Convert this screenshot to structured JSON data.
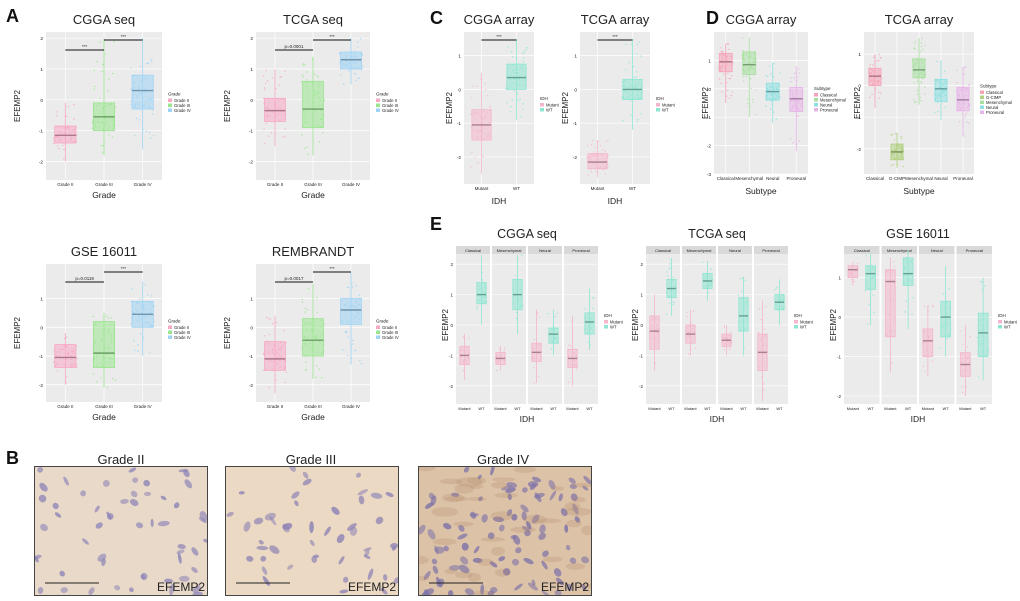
{
  "panels": {
    "A": "A",
    "B": "B",
    "C": "C",
    "D": "D",
    "E": "E"
  },
  "colors": {
    "grade2": "#f7a8c4",
    "grade3": "#9be58f",
    "grade4": "#9fd4f5",
    "mutant": "#f4b6cc",
    "wt": "#8ee6d2",
    "classical": "#f5a4b8",
    "gcimp": "#b0d080",
    "mesenchymal": "#a8e0a0",
    "neural": "#8ee0e0",
    "proneural": "#e7b4e8",
    "bg": "#ebebeb"
  },
  "chart_data": [
    {
      "id": "A1",
      "type": "box",
      "title": "CGGA seq",
      "xlabel": "Grade",
      "ylabel": "EFEMP2",
      "categories": [
        "Grade II",
        "Grade III",
        "Grade IV"
      ],
      "ylim": [
        -2.6,
        2.2
      ],
      "yticks": [
        "2",
        "1",
        "0",
        "-1",
        "-2"
      ],
      "yticks_v": [
        2,
        1,
        0,
        -1,
        -2
      ],
      "series": [
        {
          "q1": -1.4,
          "med": -1.15,
          "q3": -0.85,
          "lo": -2.0,
          "hi": -0.1
        },
        {
          "q1": -1.0,
          "med": -0.55,
          "q3": -0.1,
          "lo": -1.8,
          "hi": 2.0
        },
        {
          "q1": -0.3,
          "med": 0.3,
          "q3": 0.8,
          "lo": -1.6,
          "hi": 2.0
        }
      ],
      "sig": [
        {
          "from": 0,
          "to": 1,
          "label": "***"
        },
        {
          "from": 1,
          "to": 2,
          "label": "***"
        }
      ],
      "legend_title": "Grade",
      "legend": [
        "Grade II",
        "Grade III",
        "Grade IV"
      ]
    },
    {
      "id": "A2",
      "type": "box",
      "title": "TCGA seq",
      "xlabel": "Grade",
      "ylabel": "EFEMP2",
      "categories": [
        "Grade II",
        "Grade III",
        "Grade IV"
      ],
      "ylim": [
        -2.6,
        2.2
      ],
      "yticks": [
        "2",
        "1",
        "0",
        "-1",
        "-2"
      ],
      "yticks_v": [
        2,
        1,
        0,
        -1,
        -2
      ],
      "series": [
        {
          "q1": -0.7,
          "med": -0.35,
          "q3": 0.05,
          "lo": -1.5,
          "hi": 1.0
        },
        {
          "q1": -0.9,
          "med": -0.3,
          "q3": 0.6,
          "lo": -1.8,
          "hi": 1.4
        },
        {
          "q1": 1.0,
          "med": 1.3,
          "q3": 1.55,
          "lo": 0.5,
          "hi": 2.0
        }
      ],
      "sig": [
        {
          "from": 0,
          "to": 1,
          "label": "p=0.0001"
        },
        {
          "from": 1,
          "to": 2,
          "label": "***"
        }
      ],
      "legend_title": "Grade",
      "legend": [
        "Grade II",
        "Grade III",
        "Grade IV"
      ]
    },
    {
      "id": "A3",
      "type": "box",
      "title": "GSE 16011",
      "xlabel": "Grade",
      "ylabel": "EFEMP2",
      "categories": [
        "Grade II",
        "Grade III",
        "Grade IV"
      ],
      "ylim": [
        -2.6,
        2.2
      ],
      "yticks": [
        "1",
        "0",
        "-1",
        "-2"
      ],
      "yticks_v": [
        1,
        0,
        -1,
        -2
      ],
      "series": [
        {
          "q1": -1.4,
          "med": -1.05,
          "q3": -0.6,
          "lo": -2.0,
          "hi": -0.2
        },
        {
          "q1": -1.4,
          "med": -0.9,
          "q3": 0.2,
          "lo": -2.1,
          "hi": 0.5
        },
        {
          "q1": 0.0,
          "med": 0.45,
          "q3": 0.9,
          "lo": -1.0,
          "hi": 1.6
        }
      ],
      "sig": [
        {
          "from": 0,
          "to": 1,
          "label": "p=0.0119"
        },
        {
          "from": 1,
          "to": 2,
          "label": "***"
        }
      ],
      "legend_title": "Grade",
      "legend": [
        "Grade II",
        "Grade III",
        "Grade IV"
      ]
    },
    {
      "id": "A4",
      "type": "box",
      "title": "REMBRANDT",
      "xlabel": "Grade",
      "ylabel": "EFEMP2",
      "categories": [
        "Grade II",
        "Grade III",
        "Grade IV"
      ],
      "ylim": [
        -2.6,
        2.2
      ],
      "yticks": [
        "1",
        "0",
        "-1",
        "-2"
      ],
      "yticks_v": [
        1,
        0,
        -1,
        -2
      ],
      "series": [
        {
          "q1": -1.5,
          "med": -1.1,
          "q3": -0.5,
          "lo": -2.3,
          "hi": 0.4
        },
        {
          "q1": -1.0,
          "med": -0.45,
          "q3": 0.3,
          "lo": -1.8,
          "hi": 1.5
        },
        {
          "q1": 0.1,
          "med": 0.6,
          "q3": 1.0,
          "lo": -1.3,
          "hi": 1.9
        }
      ],
      "sig": [
        {
          "from": 0,
          "to": 1,
          "label": "p=0.0017"
        },
        {
          "from": 1,
          "to": 2,
          "label": "***"
        }
      ],
      "legend_title": "Grade",
      "legend": [
        "Grade II",
        "Grade III",
        "Grade IV"
      ]
    },
    {
      "id": "C1",
      "type": "box",
      "title": "CGGA array",
      "xlabel": "IDH",
      "ylabel": "EFEMP2",
      "categories": [
        "Mutant",
        "WT"
      ],
      "ylim": [
        -2.8,
        1.7
      ],
      "yticks": [
        "1",
        "0",
        "-1",
        "-2"
      ],
      "yticks_v": [
        1,
        0,
        -1,
        -2
      ],
      "series": [
        {
          "q1": -1.5,
          "med": -1.05,
          "q3": -0.6,
          "lo": -2.5,
          "hi": 0.5
        },
        {
          "q1": 0.0,
          "med": 0.35,
          "q3": 0.75,
          "lo": -0.9,
          "hi": 1.5
        }
      ],
      "sig": [
        {
          "from": 0,
          "to": 1,
          "label": "***"
        }
      ],
      "legend_title": "IDH",
      "legend": [
        "Mutant",
        "WT"
      ]
    },
    {
      "id": "C2",
      "type": "box",
      "title": "TCGA array",
      "xlabel": "IDH",
      "ylabel": "EFEMP2",
      "categories": [
        "Mutant",
        "WT"
      ],
      "ylim": [
        -2.8,
        1.7
      ],
      "yticks": [
        "1",
        "0",
        "-1",
        "-2"
      ],
      "yticks_v": [
        1,
        0,
        -1,
        -2
      ],
      "series": [
        {
          "q1": -2.35,
          "med": -2.15,
          "q3": -1.9,
          "lo": -2.6,
          "hi": -1.5
        },
        {
          "q1": -0.3,
          "med": 0.0,
          "q3": 0.3,
          "lo": -1.2,
          "hi": 1.5
        }
      ],
      "sig": [
        {
          "from": 0,
          "to": 1,
          "label": "***"
        }
      ],
      "legend_title": "IDH",
      "legend": [
        "Mutant",
        "WT"
      ]
    },
    {
      "id": "D1",
      "type": "box",
      "title": "CGGA array",
      "xlabel": "Subtype",
      "ylabel": "EFEMP2",
      "categories": [
        "Classical",
        "Mesenchymal",
        "Neural",
        "Proneural"
      ],
      "ylim": [
        -3.0,
        2.0
      ],
      "yticks": [
        "1",
        "0",
        "-1",
        "-2",
        "-3"
      ],
      "yticks_v": [
        1,
        0,
        -1,
        -2,
        -3
      ],
      "series": [
        {
          "q1": 0.6,
          "med": 0.95,
          "q3": 1.25,
          "lo": -0.5,
          "hi": 1.6
        },
        {
          "q1": 0.5,
          "med": 0.85,
          "q3": 1.3,
          "lo": -1.0,
          "hi": 1.8
        },
        {
          "q1": -0.4,
          "med": -0.1,
          "q3": 0.2,
          "lo": -1.2,
          "hi": 0.9
        },
        {
          "q1": -0.8,
          "med": -0.35,
          "q3": 0.05,
          "lo": -2.2,
          "hi": 0.8
        }
      ],
      "legend_title": "Subtype",
      "legend": [
        "Classical",
        "Mesenchymal",
        "Neural",
        "Proneural"
      ]
    },
    {
      "id": "D2",
      "type": "box",
      "title": "TCGA array",
      "xlabel": "Subtype",
      "ylabel": "EFEMP2",
      "categories": [
        "Classical",
        "G-CIMP",
        "Mesenchymal",
        "Neural",
        "Proneural"
      ],
      "ylim": [
        -2.8,
        1.7
      ],
      "yticks": [
        "1",
        "0",
        "-1",
        "-2"
      ],
      "yticks_v": [
        1,
        0,
        -1,
        -2
      ],
      "series": [
        {
          "q1": 0.0,
          "med": 0.3,
          "q3": 0.55,
          "lo": -0.7,
          "hi": 1.0
        },
        {
          "q1": -2.35,
          "med": -2.1,
          "q3": -1.85,
          "lo": -2.6,
          "hi": -1.5
        },
        {
          "q1": 0.25,
          "med": 0.5,
          "q3": 0.85,
          "lo": -0.6,
          "hi": 1.5
        },
        {
          "q1": -0.5,
          "med": -0.1,
          "q3": 0.2,
          "lo": -1.1,
          "hi": 0.8
        },
        {
          "q1": -0.8,
          "med": -0.45,
          "q3": -0.05,
          "lo": -1.6,
          "hi": 0.6
        }
      ],
      "legend_title": "Subtype",
      "legend": [
        "Classical",
        "G-CIMP",
        "Mesenchymal",
        "Neural",
        "Proneural"
      ]
    },
    {
      "id": "E1",
      "type": "box-faceted",
      "title": "CGGA seq",
      "xlabel": "IDH",
      "ylabel": "EFEMP2",
      "facets": [
        "Classical",
        "Mesenchymal",
        "Neural",
        "Proneural"
      ],
      "categories": [
        "Mutant",
        "WT"
      ],
      "ylim": [
        -2.6,
        2.6
      ],
      "yticks": [
        "2",
        "1",
        "0",
        "-1",
        "-2"
      ],
      "yticks_v": [
        2,
        1,
        0,
        -1,
        -2
      ],
      "series": [
        [
          {
            "q1": -1.3,
            "med": -1.0,
            "q3": -0.7,
            "lo": -1.8,
            "hi": -0.3
          },
          {
            "q1": 0.7,
            "med": 1.0,
            "q3": 1.4,
            "lo": 0.0,
            "hi": 2.3
          }
        ],
        [
          {
            "q1": -1.3,
            "med": -1.1,
            "q3": -0.9,
            "lo": -1.5,
            "hi": -0.7
          },
          {
            "q1": 0.5,
            "med": 1.0,
            "q3": 1.5,
            "lo": -0.3,
            "hi": 2.3
          }
        ],
        [
          {
            "q1": -1.2,
            "med": -0.9,
            "q3": -0.6,
            "lo": -1.9,
            "hi": 0.5
          },
          {
            "q1": -0.6,
            "med": -0.3,
            "q3": -0.1,
            "lo": -1.0,
            "hi": 0.5
          }
        ],
        [
          {
            "q1": -1.4,
            "med": -1.1,
            "q3": -0.8,
            "lo": -2.0,
            "hi": 0.3
          },
          {
            "q1": -0.3,
            "med": 0.1,
            "q3": 0.4,
            "lo": -0.8,
            "hi": 1.2
          }
        ]
      ],
      "legend_title": "IDH",
      "legend": [
        "Mutant",
        "WT"
      ]
    },
    {
      "id": "E2",
      "type": "box-faceted",
      "title": "TCGA seq",
      "xlabel": "IDH",
      "ylabel": "EFEMP2",
      "facets": [
        "Classical",
        "Mesenchymal",
        "Neural",
        "Proneural"
      ],
      "categories": [
        "Mutant",
        "WT"
      ],
      "ylim": [
        -2.6,
        2.6
      ],
      "yticks": [
        "2",
        "1",
        "0",
        "-1",
        "-2"
      ],
      "yticks_v": [
        2,
        1,
        0,
        -1,
        -2
      ],
      "series": [
        [
          {
            "q1": -0.8,
            "med": -0.2,
            "q3": 0.3,
            "lo": -1.5,
            "hi": 1.0
          },
          {
            "q1": 0.9,
            "med": 1.2,
            "q3": 1.5,
            "lo": 0.3,
            "hi": 2.2
          }
        ],
        [
          {
            "q1": -0.6,
            "med": -0.3,
            "q3": 0.0,
            "lo": -1.0,
            "hi": 0.5
          },
          {
            "q1": 1.2,
            "med": 1.45,
            "q3": 1.7,
            "lo": 0.8,
            "hi": 2.1
          }
        ],
        [
          {
            "q1": -0.7,
            "med": -0.5,
            "q3": -0.3,
            "lo": -1.0,
            "hi": 0.0
          },
          {
            "q1": -0.2,
            "med": 0.3,
            "q3": 0.9,
            "lo": -1.0,
            "hi": 1.6
          }
        ],
        [
          {
            "q1": -1.5,
            "med": -0.9,
            "q3": -0.3,
            "lo": -2.5,
            "hi": 0.8
          },
          {
            "q1": 0.5,
            "med": 0.75,
            "q3": 1.0,
            "lo": 0.0,
            "hi": 1.5
          }
        ]
      ],
      "legend_title": "IDH",
      "legend": [
        "Mutant",
        "WT"
      ]
    },
    {
      "id": "E3",
      "type": "box-faceted",
      "title": "GSE 16011",
      "xlabel": "IDH",
      "ylabel": "EFEMP2",
      "facets": [
        "Classical",
        "Mesenchymal",
        "Neural",
        "Proneural"
      ],
      "categories": [
        "Mutant",
        "WT"
      ],
      "ylim": [
        -2.2,
        1.8
      ],
      "yticks": [
        "1",
        "0",
        "-1",
        "-2"
      ],
      "yticks_v": [
        1,
        0,
        -1,
        -2
      ],
      "series": [
        [
          {
            "q1": 1.0,
            "med": 1.2,
            "q3": 1.3,
            "lo": 0.8,
            "hi": 1.4
          },
          {
            "q1": 0.7,
            "med": 1.1,
            "q3": 1.3,
            "lo": -0.2,
            "hi": 1.6
          }
        ],
        [
          {
            "q1": -0.5,
            "med": 0.9,
            "q3": 1.2,
            "lo": -1.4,
            "hi": 1.5
          },
          {
            "q1": 0.8,
            "med": 1.1,
            "q3": 1.5,
            "lo": -0.3,
            "hi": 1.7
          }
        ],
        [
          {
            "q1": -1.0,
            "med": -0.6,
            "q3": -0.3,
            "lo": -1.5,
            "hi": 0.3
          },
          {
            "q1": -0.5,
            "med": 0.0,
            "q3": 0.4,
            "lo": -1.0,
            "hi": 1.3
          }
        ],
        [
          {
            "q1": -1.5,
            "med": -1.2,
            "q3": -0.9,
            "lo": -2.0,
            "hi": -0.2
          },
          {
            "q1": -1.0,
            "med": -0.4,
            "q3": 0.1,
            "lo": -1.6,
            "hi": 1.0
          }
        ]
      ],
      "legend_title": "IDH",
      "legend": [
        "Mutant",
        "WT"
      ]
    }
  ],
  "micrographs": [
    {
      "title": "Grade II",
      "label": "EFEMP2",
      "tone": "#e9d9c8",
      "nuc": "#8f86b8",
      "density": 55
    },
    {
      "title": "Grade III",
      "label": "EFEMP2",
      "tone": "#ecd9c3",
      "nuc": "#8e84b5",
      "density": 48
    },
    {
      "title": "Grade IV",
      "label": "EFEMP2",
      "tone": "#dcc3a8",
      "nuc": "#7f73a8",
      "density": 95
    }
  ]
}
